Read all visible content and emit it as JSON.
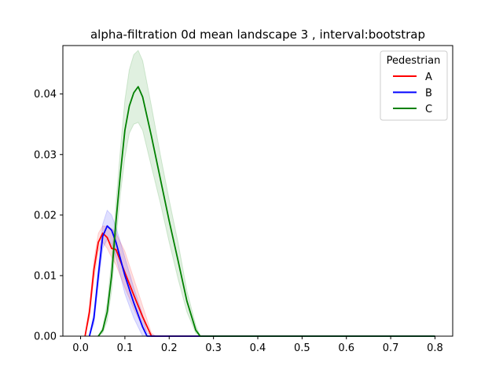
{
  "chart_data": {
    "type": "line",
    "title": "alpha-filtration 0d mean landscape 3 , interval:bootstrap",
    "xlabel": "",
    "ylabel": "",
    "xlim": [
      -0.04,
      0.84
    ],
    "ylim": [
      0.0,
      0.048
    ],
    "xticks": [
      0.0,
      0.1,
      0.2,
      0.3,
      0.4,
      0.5,
      0.6,
      0.7,
      0.8
    ],
    "xtick_labels": [
      "0.0",
      "0.1",
      "0.2",
      "0.3",
      "0.4",
      "0.5",
      "0.6",
      "0.7",
      "0.8"
    ],
    "yticks": [
      0.0,
      0.01,
      0.02,
      0.03,
      0.04
    ],
    "ytick_labels": [
      "0.00",
      "0.01",
      "0.02",
      "0.03",
      "0.04"
    ],
    "grid": false,
    "legend": {
      "title": "Pedestrian",
      "placement": "top-right"
    },
    "series": [
      {
        "name": "A",
        "color": "#ff0000",
        "x": [
          0.01,
          0.02,
          0.03,
          0.04,
          0.05,
          0.06,
          0.07,
          0.08,
          0.1,
          0.12,
          0.14,
          0.16,
          0.17,
          0.8
        ],
        "y": [
          0.0,
          0.004,
          0.011,
          0.0155,
          0.017,
          0.0163,
          0.0145,
          0.0143,
          0.0105,
          0.0068,
          0.0032,
          0.0,
          0.0,
          0.0
        ],
        "upper": [
          0.0,
          0.005,
          0.0125,
          0.017,
          0.0182,
          0.0181,
          0.0178,
          0.017,
          0.014,
          0.0095,
          0.005,
          0.0005,
          0.0,
          0.0
        ],
        "lower": [
          0.0,
          0.003,
          0.0095,
          0.014,
          0.0155,
          0.0145,
          0.013,
          0.0118,
          0.008,
          0.0045,
          0.0015,
          0.0,
          0.0,
          0.0
        ]
      },
      {
        "name": "B",
        "color": "#0000ff",
        "x": [
          0.02,
          0.03,
          0.04,
          0.05,
          0.06,
          0.07,
          0.08,
          0.1,
          0.12,
          0.14,
          0.15,
          0.17,
          0.8
        ],
        "y": [
          0.0,
          0.003,
          0.01,
          0.0165,
          0.0182,
          0.0175,
          0.0155,
          0.01,
          0.0055,
          0.0015,
          0.0,
          0.0,
          0.0
        ],
        "upper": [
          0.0,
          0.004,
          0.0115,
          0.0185,
          0.0208,
          0.02,
          0.018,
          0.013,
          0.008,
          0.0035,
          0.0005,
          0.0,
          0.0
        ],
        "lower": [
          0.0,
          0.002,
          0.0085,
          0.0145,
          0.016,
          0.0152,
          0.013,
          0.007,
          0.003,
          0.0,
          0.0,
          0.0,
          0.0
        ]
      },
      {
        "name": "C",
        "color": "#008000",
        "x": [
          0.04,
          0.05,
          0.06,
          0.07,
          0.08,
          0.09,
          0.1,
          0.11,
          0.12,
          0.13,
          0.14,
          0.16,
          0.18,
          0.2,
          0.22,
          0.24,
          0.26,
          0.27,
          0.8
        ],
        "y": [
          0.0,
          0.001,
          0.004,
          0.01,
          0.019,
          0.027,
          0.034,
          0.038,
          0.0402,
          0.0412,
          0.0395,
          0.033,
          0.026,
          0.019,
          0.0125,
          0.0058,
          0.001,
          0.0,
          0.0
        ],
        "upper": [
          0.0,
          0.0015,
          0.0055,
          0.0125,
          0.022,
          0.031,
          0.039,
          0.044,
          0.0465,
          0.0472,
          0.0455,
          0.038,
          0.03,
          0.0225,
          0.0155,
          0.0075,
          0.0018,
          0.0,
          0.0
        ],
        "lower": [
          0.0,
          0.0005,
          0.0025,
          0.0075,
          0.016,
          0.0235,
          0.0295,
          0.0335,
          0.035,
          0.0353,
          0.034,
          0.028,
          0.022,
          0.0155,
          0.0095,
          0.004,
          0.0005,
          0.0,
          0.0
        ]
      }
    ]
  }
}
